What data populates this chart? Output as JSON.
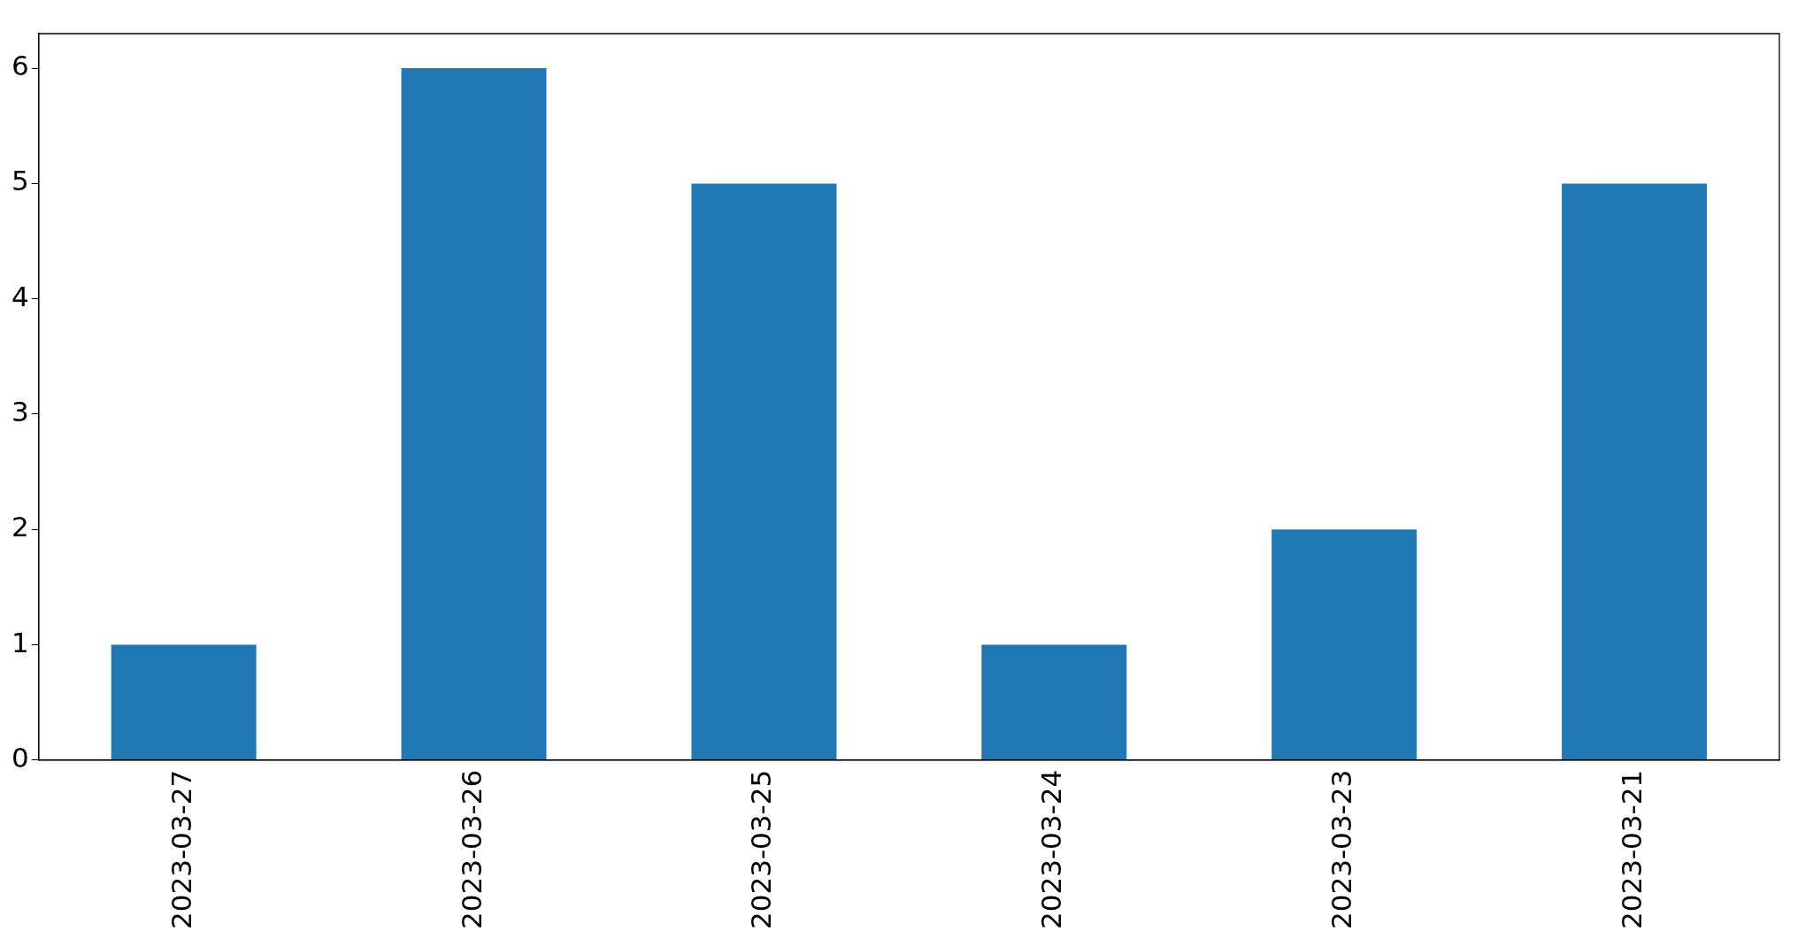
{
  "chart_data": {
    "type": "bar",
    "categories": [
      "2023-03-27",
      "2023-03-26",
      "2023-03-25",
      "2023-03-24",
      "2023-03-23",
      "2023-03-21"
    ],
    "values": [
      1,
      6,
      5,
      1,
      2,
      5
    ],
    "color": "#1f77b4",
    "ylim": [
      0,
      6.3
    ],
    "yticks": [
      0,
      1,
      2,
      3,
      4,
      5,
      6
    ]
  }
}
